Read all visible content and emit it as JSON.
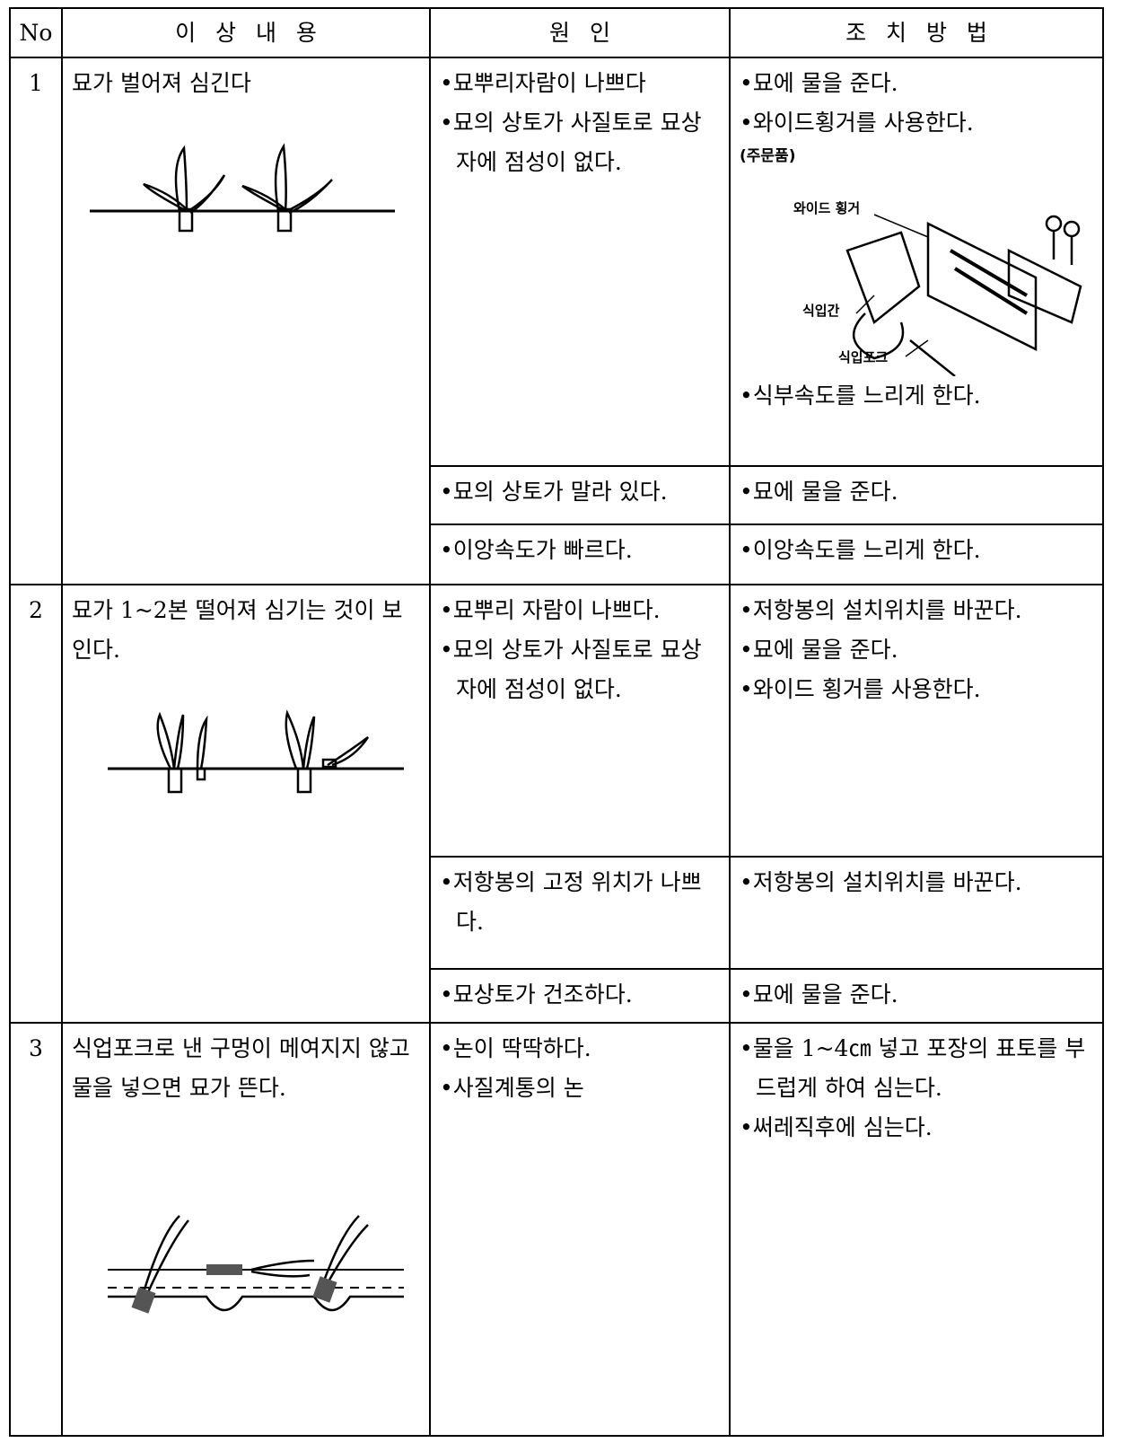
{
  "table": {
    "header": [
      "No",
      "이 상 내 용",
      "원 인",
      "조 치 방 법"
    ],
    "rows": [
      {
        "no": "1",
        "problem": "묘가 벌어져 심긴다",
        "causes": [
          {
            "cause": [
              "•묘뿌리자람이 나쁘다",
              "•묘의 상토가 사질토로 묘상자에 점성이 없다."
            ],
            "remedy": [
              "•묘에 물을 준다.",
              "•와이드횡거를 사용한다."
            ],
            "figure": {
              "note": "(주문품)",
              "labels": [
                "와이드 횡거",
                "식입간",
                "식입포크"
              ]
            },
            "remedy_after": [
              "•식부속도를 느리게 한다."
            ]
          },
          {
            "cause": [
              "•묘의 상토가 말라 있다."
            ],
            "remedy": [
              "•묘에 물을 준다."
            ]
          },
          {
            "cause": [
              "•이앙속도가 빠르다."
            ],
            "remedy": [
              "•이앙속도를 느리게 한다."
            ]
          }
        ]
      },
      {
        "no": "2",
        "problem": "묘가 1~2본 떨어져 심기는 것이 보인다.",
        "causes": [
          {
            "cause": [
              "•묘뿌리 자람이 나쁘다.",
              "•묘의 상토가 사질토로 묘상자에 점성이 없다."
            ],
            "remedy": [
              "•저항봉의 설치위치를 바꾼다.",
              "•묘에 물을 준다.",
              "•와이드 횡거를 사용한다."
            ]
          },
          {
            "cause": [
              "•저항봉의 고정 위치가 나쁘다."
            ],
            "remedy": [
              "•저항봉의 설치위치를 바꾼다."
            ]
          },
          {
            "cause": [
              "•묘상토가 건조하다."
            ],
            "remedy": [
              "•묘에 물을 준다."
            ]
          }
        ]
      },
      {
        "no": "3",
        "problem": "식업포크로 낸 구멍이 메여지지 않고 물을 넣으면 묘가 뜬다.",
        "causes": [
          {
            "cause": [
              "•논이 딱딱하다.",
              "•사질계통의 논"
            ],
            "remedy": [
              "•물을 1~4㎝ 넣고 포장의 표토를 부드럽게 하여 심는다.",
              "•써레직후에 심는다."
            ]
          }
        ]
      }
    ]
  }
}
